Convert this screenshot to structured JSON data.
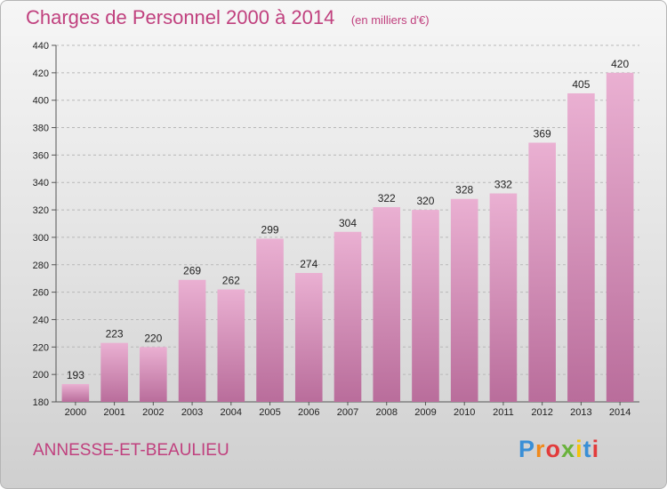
{
  "header": {
    "title": "Charges de Personnel 2000 à 2014",
    "subtitle": "(en milliers d'€)"
  },
  "location": "ANNESSE-ET-BEAULIEU",
  "brand": {
    "letters": [
      "P",
      "r",
      "o",
      "x",
      "i",
      "t",
      "i"
    ],
    "colors": [
      "#3a8fd6",
      "#f08a1c",
      "#e23b3b",
      "#6ab23c",
      "#f4c20d",
      "#3a8fd6",
      "#e23b3b"
    ]
  },
  "chart_data": {
    "type": "bar",
    "categories": [
      "2000",
      "2001",
      "2002",
      "2003",
      "2004",
      "2005",
      "2006",
      "2007",
      "2008",
      "2009",
      "2010",
      "2011",
      "2012",
      "2013",
      "2014"
    ],
    "values": [
      193,
      223,
      220,
      269,
      262,
      299,
      274,
      304,
      322,
      320,
      328,
      332,
      369,
      405,
      420
    ],
    "ylim": [
      180,
      440
    ],
    "yticks": [
      180,
      200,
      220,
      240,
      260,
      280,
      300,
      320,
      340,
      360,
      380,
      400,
      420,
      440
    ],
    "grid": "horizontal-dashed",
    "bar_color": "#d27cb0"
  }
}
